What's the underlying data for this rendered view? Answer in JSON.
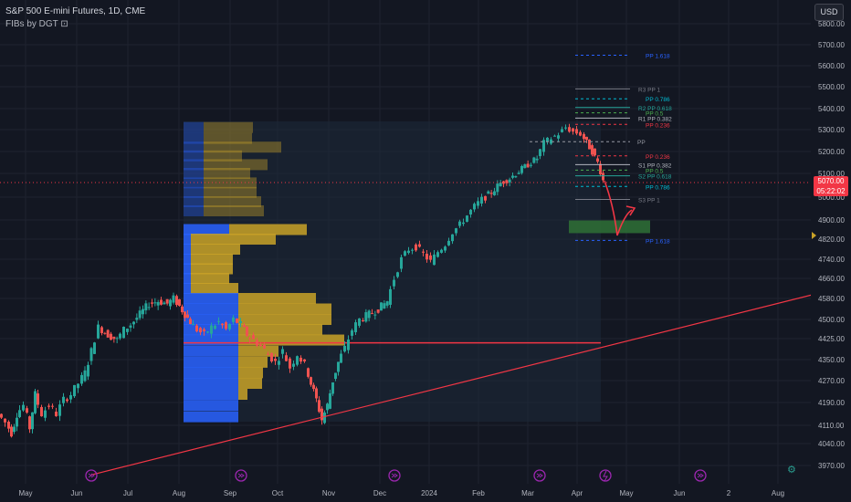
{
  "header": {
    "title": "S&P 500 E-mini Futures, 1D, CME",
    "indicator": "FIBs by DGT"
  },
  "currency_button": "USD",
  "last_price": {
    "value": "5070.00",
    "countdown": "05:22:02",
    "color": "#f23645"
  },
  "colors": {
    "bull": "#26a69a",
    "bear": "#ef5350",
    "background": "#131722",
    "volume_up": "#2962ff",
    "volume_down": "#c9a227",
    "trendline": "#f23645",
    "target_box": "#2e6b35"
  },
  "chart_data": {
    "type": "candlestick",
    "symbol": "S&P 500 E-mini Futures",
    "interval": "1D",
    "exchange": "CME",
    "y_ticks": [
      3970,
      4040,
      4110,
      4190,
      4270,
      4350,
      4425,
      4500,
      4580,
      4660,
      4740,
      4820,
      4900,
      5000,
      5100,
      5200,
      5300,
      5400,
      5500,
      5600,
      5700,
      5800
    ],
    "y_tick_labels": [
      "3970.00",
      "4040.00",
      "4110.00",
      "4190.00",
      "4270.00",
      "4350.00",
      "4425.00",
      "4500.00",
      "4580.00",
      "4660.00",
      "4740.00",
      "4820.00",
      "4900.00",
      "5000.00",
      "5100.00",
      "5200.00",
      "5300.00",
      "5400.00",
      "5500.00",
      "5600.00",
      "5700.00",
      "5800.00"
    ],
    "x_labels": [
      "May",
      "Jun",
      "Jul",
      "Aug",
      "Sep",
      "Oct",
      "Nov",
      "Dec",
      "2024",
      "Feb",
      "Mar",
      "Apr",
      "May",
      "Jun",
      "2",
      "Aug"
    ],
    "price_path": [
      [
        0,
        4150
      ],
      [
        8,
        4120
      ],
      [
        14,
        4080
      ],
      [
        20,
        4150
      ],
      [
        28,
        4180
      ],
      [
        34,
        4100
      ],
      [
        40,
        4220
      ],
      [
        48,
        4150
      ],
      [
        56,
        4180
      ],
      [
        64,
        4150
      ],
      [
        72,
        4200
      ],
      [
        80,
        4220
      ],
      [
        88,
        4260
      ],
      [
        95,
        4300
      ],
      [
        102,
        4380
      ],
      [
        110,
        4470
      ],
      [
        120,
        4440
      ],
      [
        130,
        4420
      ],
      [
        138,
        4460
      ],
      [
        145,
        4480
      ],
      [
        155,
        4520
      ],
      [
        165,
        4560
      ],
      [
        175,
        4570
      ],
      [
        185,
        4560
      ],
      [
        192,
        4580
      ],
      [
        198,
        4550
      ],
      [
        204,
        4520
      ],
      [
        210,
        4490
      ],
      [
        218,
        4460
      ],
      [
        226,
        4440
      ],
      [
        234,
        4470
      ],
      [
        242,
        4490
      ],
      [
        250,
        4460
      ],
      [
        258,
        4500
      ],
      [
        266,
        4480
      ],
      [
        272,
        4440
      ],
      [
        280,
        4420
      ],
      [
        288,
        4400
      ],
      [
        296,
        4370
      ],
      [
        304,
        4340
      ],
      [
        312,
        4380
      ],
      [
        320,
        4320
      ],
      [
        328,
        4370
      ],
      [
        336,
        4330
      ],
      [
        342,
        4260
      ],
      [
        348,
        4200
      ],
      [
        354,
        4130
      ],
      [
        360,
        4180
      ],
      [
        366,
        4270
      ],
      [
        372,
        4340
      ],
      [
        380,
        4390
      ],
      [
        388,
        4460
      ],
      [
        396,
        4500
      ],
      [
        406,
        4520
      ],
      [
        416,
        4540
      ],
      [
        426,
        4570
      ],
      [
        434,
        4660
      ],
      [
        442,
        4740
      ],
      [
        450,
        4780
      ],
      [
        458,
        4790
      ],
      [
        466,
        4760
      ],
      [
        474,
        4730
      ],
      [
        482,
        4770
      ],
      [
        490,
        4800
      ],
      [
        498,
        4850
      ],
      [
        506,
        4880
      ],
      [
        514,
        4920
      ],
      [
        522,
        4960
      ],
      [
        530,
        4990
      ],
      [
        540,
        5020
      ],
      [
        550,
        5060
      ],
      [
        560,
        5080
      ],
      [
        570,
        5110
      ],
      [
        580,
        5140
      ],
      [
        590,
        5170
      ],
      [
        598,
        5240
      ],
      [
        606,
        5260
      ],
      [
        614,
        5280
      ],
      [
        622,
        5310
      ],
      [
        630,
        5290
      ],
      [
        638,
        5280
      ],
      [
        644,
        5240
      ],
      [
        650,
        5200
      ],
      [
        656,
        5150
      ],
      [
        662,
        5070
      ]
    ],
    "volume_profile_rows": [
      [
        5310,
        0,
        36
      ],
      [
        5260,
        0,
        35
      ],
      [
        5220,
        0,
        67
      ],
      [
        5180,
        0,
        24
      ],
      [
        5140,
        0,
        52
      ],
      [
        5100,
        0,
        33
      ],
      [
        5060,
        0,
        40
      ],
      [
        5020,
        0,
        40
      ],
      [
        4980,
        0,
        45
      ],
      [
        4940,
        0,
        48
      ],
      [
        4860,
        0,
        95
      ],
      [
        4820,
        0,
        61
      ],
      [
        4780,
        0,
        22
      ],
      [
        4740,
        0,
        14
      ],
      [
        4700,
        0,
        14
      ],
      [
        4660,
        0,
        10
      ],
      [
        4620,
        0,
        20
      ],
      [
        4580,
        0,
        105
      ],
      [
        4540,
        0,
        122
      ],
      [
        4500,
        0,
        122
      ],
      [
        4460,
        0,
        112
      ],
      [
        4420,
        0,
        136
      ],
      [
        4380,
        0,
        64
      ],
      [
        4340,
        0,
        52
      ],
      [
        4300,
        0,
        47
      ],
      [
        4260,
        0,
        46
      ],
      [
        4220,
        0,
        30
      ],
      [
        4180,
        0,
        18
      ],
      [
        4140,
        0,
        19
      ]
    ],
    "fib_levels": [
      {
        "label": "PP 1.618",
        "price": 5650,
        "color": "#2962ff",
        "dash": true
      },
      {
        "label": "R3 PP 1",
        "price": 5490,
        "color": "#787b86",
        "dash": false
      },
      {
        "label": "PP 0.786",
        "price": 5445,
        "color": "#00bcd4",
        "dash": true
      },
      {
        "label": "R2 PP 0.618",
        "price": 5405,
        "color": "#26a69a",
        "dash": false
      },
      {
        "label": "PP 0.5",
        "price": 5380,
        "color": "#4caf50",
        "dash": true
      },
      {
        "label": "R1 PP 0.382",
        "price": 5355,
        "color": "#b2b5be",
        "dash": false
      },
      {
        "label": "PP 0.236",
        "price": 5325,
        "color": "#f23645",
        "dash": true
      },
      {
        "label": "PP",
        "price": 5245,
        "color": "#9598a1",
        "dash": true
      },
      {
        "label": "PP 0.236",
        "price": 5180,
        "color": "#f23645",
        "dash": true
      },
      {
        "label": "S1 PP 0.382",
        "price": 5140,
        "color": "#b2b5be",
        "dash": false
      },
      {
        "label": "PP 0.5",
        "price": 5115,
        "color": "#4caf50",
        "dash": true
      },
      {
        "label": "S2 PP 0.618",
        "price": 5090,
        "color": "#26a69a",
        "dash": false
      },
      {
        "label": "PP 0.786",
        "price": 5045,
        "color": "#00bcd4",
        "dash": true
      },
      {
        "label": "S3 PP 1",
        "price": 4990,
        "color": "#787b86",
        "dash": false
      },
      {
        "label": "PP 1.618",
        "price": 4815,
        "color": "#2962ff",
        "dash": true
      }
    ],
    "poc_price": 4410,
    "target_zone": [
      4845,
      4898
    ],
    "trendline": [
      [
        100,
        3940
      ],
      [
        890,
        4595
      ]
    ]
  }
}
